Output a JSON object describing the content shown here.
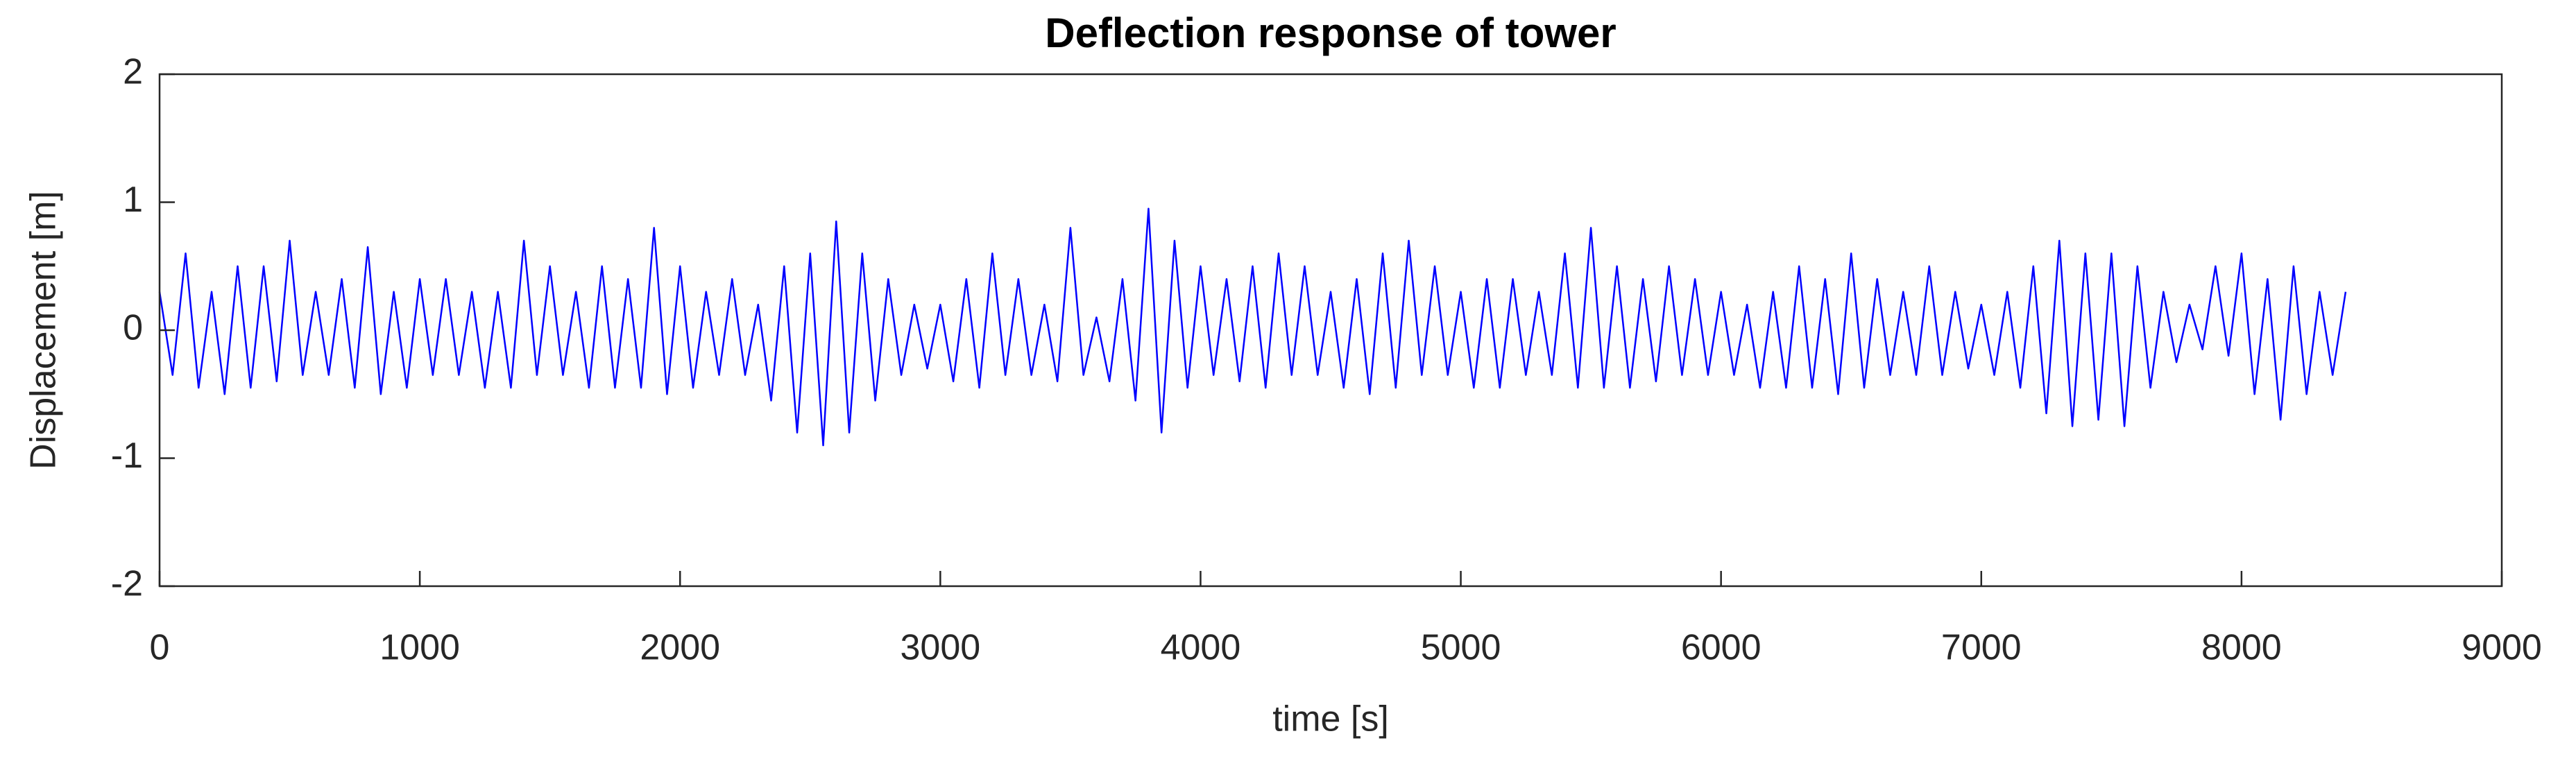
{
  "chart_data": {
    "type": "line",
    "title": "Deflection response of tower",
    "xlabel": "time [s]",
    "ylabel": "Displacement [m]",
    "color": "#0000ff",
    "x": [
      0,
      50,
      100,
      150,
      200,
      250,
      300,
      350,
      400,
      450,
      500,
      550,
      600,
      650,
      700,
      750,
      800,
      850,
      900,
      950,
      1000,
      1050,
      1100,
      1150,
      1200,
      1250,
      1300,
      1350,
      1400,
      1450,
      1500,
      1550,
      1600,
      1650,
      1700,
      1750,
      1800,
      1850,
      1900,
      1950,
      2000,
      2050,
      2100,
      2150,
      2200,
      2250,
      2300,
      2350,
      2400,
      2450,
      2500,
      2550,
      2600,
      2650,
      2700,
      2750,
      2800,
      2850,
      2900,
      2950,
      3000,
      3050,
      3100,
      3150,
      3200,
      3250,
      3300,
      3350,
      3400,
      3450,
      3500,
      3550,
      3600,
      3650,
      3700,
      3750,
      3800,
      3850,
      3900,
      3950,
      4000,
      4050,
      4100,
      4150,
      4200,
      4250,
      4300,
      4350,
      4400,
      4450,
      4500,
      4550,
      4600,
      4650,
      4700,
      4750,
      4800,
      4850,
      4900,
      4950,
      5000,
      5050,
      5100,
      5150,
      5200,
      5250,
      5300,
      5350,
      5400,
      5450,
      5500,
      5550,
      5600,
      5650,
      5700,
      5750,
      5800,
      5850,
      5900,
      5950,
      6000,
      6050,
      6100,
      6150,
      6200,
      6250,
      6300,
      6350,
      6400,
      6450,
      6500,
      6550,
      6600,
      6650,
      6700,
      6750,
      6800,
      6850,
      6900,
      6950,
      7000,
      7050,
      7100,
      7150,
      7200,
      7250,
      7300,
      7350,
      7400,
      7450,
      7500,
      7550,
      7600,
      7650,
      7700,
      7750,
      7800,
      7850,
      7900,
      7950,
      8000,
      8050,
      8100,
      8150,
      8200,
      8250,
      8300,
      8350,
      8400
    ],
    "values": [
      0.3,
      -0.35,
      0.6,
      -0.45,
      0.3,
      -0.5,
      0.5,
      -0.45,
      0.5,
      -0.4,
      0.7,
      -0.35,
      0.3,
      -0.35,
      0.4,
      -0.45,
      0.65,
      -0.5,
      0.3,
      -0.45,
      0.4,
      -0.35,
      0.4,
      -0.35,
      0.3,
      -0.45,
      0.3,
      -0.45,
      0.7,
      -0.35,
      0.5,
      -0.35,
      0.3,
      -0.45,
      0.5,
      -0.45,
      0.4,
      -0.45,
      0.8,
      -0.5,
      0.5,
      -0.45,
      0.3,
      -0.35,
      0.4,
      -0.35,
      0.2,
      -0.55,
      0.5,
      -0.8,
      0.6,
      -0.9,
      0.85,
      -0.8,
      0.6,
      -0.55,
      0.4,
      -0.35,
      0.2,
      -0.3,
      0.2,
      -0.4,
      0.4,
      -0.45,
      0.6,
      -0.35,
      0.4,
      -0.35,
      0.2,
      -0.4,
      0.8,
      -0.35,
      0.1,
      -0.4,
      0.4,
      -0.55,
      0.95,
      -0.8,
      0.7,
      -0.45,
      0.5,
      -0.35,
      0.4,
      -0.4,
      0.5,
      -0.45,
      0.6,
      -0.35,
      0.5,
      -0.35,
      0.3,
      -0.45,
      0.4,
      -0.5,
      0.6,
      -0.45,
      0.7,
      -0.35,
      0.5,
      -0.35,
      0.3,
      -0.45,
      0.4,
      -0.45,
      0.4,
      -0.35,
      0.3,
      -0.35,
      0.6,
      -0.45,
      0.8,
      -0.45,
      0.5,
      -0.45,
      0.4,
      -0.4,
      0.5,
      -0.35,
      0.4,
      -0.35,
      0.3,
      -0.35,
      0.2,
      -0.45,
      0.3,
      -0.45,
      0.5,
      -0.45,
      0.4,
      -0.5,
      0.6,
      -0.45,
      0.4,
      -0.35,
      0.3,
      -0.35,
      0.5,
      -0.35,
      0.3,
      -0.3,
      0.2,
      -0.35,
      0.3,
      -0.45,
      0.5,
      -0.65,
      0.7,
      -0.75,
      0.6,
      -0.7,
      0.6,
      -0.75,
      0.5,
      -0.45,
      0.3,
      -0.25,
      0.2,
      -0.15,
      0.5,
      -0.2,
      0.6,
      -0.5,
      0.4,
      -0.7,
      0.5,
      -0.5,
      0.3,
      -0.35,
      0.3
    ],
    "xlim": [
      0,
      9000
    ],
    "xticks": [
      0,
      1000,
      2000,
      3000,
      4000,
      5000,
      6000,
      7000,
      8000,
      9000
    ],
    "ylim": [
      -2,
      2
    ],
    "yticks": [
      -2,
      -1,
      0,
      1,
      2
    ]
  }
}
